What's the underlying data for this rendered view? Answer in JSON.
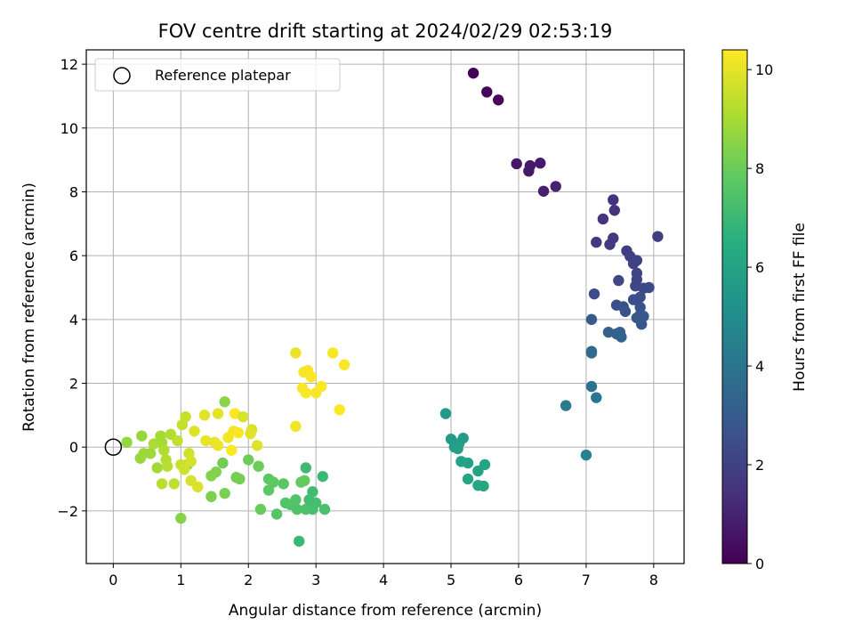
{
  "chart_data": {
    "type": "scatter",
    "title": "FOV centre drift starting at 2024/02/29 02:53:19",
    "xlabel": "Angular distance from reference (arcmin)",
    "ylabel": "Rotation from reference (arcmin)",
    "xlim": [
      -0.4,
      8.45
    ],
    "ylim": [
      -3.65,
      12.45
    ],
    "xticks": [
      0,
      1,
      2,
      3,
      4,
      5,
      6,
      7,
      8
    ],
    "yticks": [
      -2,
      0,
      2,
      4,
      6,
      8,
      10,
      12
    ],
    "grid": true,
    "legend": {
      "position": "top-left",
      "entries": [
        {
          "label": "Reference platepar",
          "marker": "open-circle"
        }
      ]
    },
    "reference_point": {
      "x": 0,
      "y": 0
    },
    "colorbar": {
      "label": "Hours from first FF file",
      "colormap": "viridis",
      "range": [
        0,
        10.4
      ],
      "ticks": [
        0,
        2,
        4,
        6,
        8,
        10
      ]
    },
    "points": [
      {
        "x": 5.33,
        "y": 11.72,
        "t": 0.05
      },
      {
        "x": 5.53,
        "y": 11.13,
        "t": 0.15
      },
      {
        "x": 5.7,
        "y": 10.88,
        "t": 0.25
      },
      {
        "x": 5.97,
        "y": 8.88,
        "t": 0.6
      },
      {
        "x": 6.15,
        "y": 8.65,
        "t": 0.7
      },
      {
        "x": 6.17,
        "y": 8.82,
        "t": 0.75
      },
      {
        "x": 6.32,
        "y": 8.9,
        "t": 0.8
      },
      {
        "x": 6.37,
        "y": 8.02,
        "t": 0.9
      },
      {
        "x": 6.55,
        "y": 8.17,
        "t": 1.0
      },
      {
        "x": 7.4,
        "y": 7.75,
        "t": 1.5
      },
      {
        "x": 7.42,
        "y": 7.42,
        "t": 1.55
      },
      {
        "x": 7.25,
        "y": 7.15,
        "t": 1.6
      },
      {
        "x": 7.15,
        "y": 6.42,
        "t": 1.7
      },
      {
        "x": 7.35,
        "y": 6.35,
        "t": 1.75
      },
      {
        "x": 7.4,
        "y": 6.55,
        "t": 1.8
      },
      {
        "x": 8.06,
        "y": 6.6,
        "t": 1.85
      },
      {
        "x": 7.6,
        "y": 6.15,
        "t": 1.9
      },
      {
        "x": 7.65,
        "y": 5.98,
        "t": 1.95
      },
      {
        "x": 7.7,
        "y": 5.75,
        "t": 2.0
      },
      {
        "x": 7.75,
        "y": 5.85,
        "t": 2.05
      },
      {
        "x": 7.75,
        "y": 5.45,
        "t": 2.1
      },
      {
        "x": 7.75,
        "y": 5.25,
        "t": 2.15
      },
      {
        "x": 7.48,
        "y": 5.22,
        "t": 2.2
      },
      {
        "x": 7.73,
        "y": 5.05,
        "t": 2.25
      },
      {
        "x": 7.85,
        "y": 4.98,
        "t": 2.3
      },
      {
        "x": 7.93,
        "y": 5.0,
        "t": 2.35
      },
      {
        "x": 7.12,
        "y": 4.8,
        "t": 2.4
      },
      {
        "x": 7.8,
        "y": 4.7,
        "t": 2.45
      },
      {
        "x": 7.7,
        "y": 4.62,
        "t": 2.5
      },
      {
        "x": 7.45,
        "y": 4.45,
        "t": 2.55
      },
      {
        "x": 7.55,
        "y": 4.4,
        "t": 2.6
      },
      {
        "x": 7.8,
        "y": 4.38,
        "t": 2.65
      },
      {
        "x": 7.58,
        "y": 4.25,
        "t": 2.7
      },
      {
        "x": 7.8,
        "y": 4.15,
        "t": 2.75
      },
      {
        "x": 7.75,
        "y": 4.05,
        "t": 2.8
      },
      {
        "x": 7.85,
        "y": 4.1,
        "t": 2.85
      },
      {
        "x": 7.82,
        "y": 3.85,
        "t": 2.9
      },
      {
        "x": 7.08,
        "y": 4.0,
        "t": 3.0
      },
      {
        "x": 7.33,
        "y": 3.6,
        "t": 3.2
      },
      {
        "x": 7.5,
        "y": 3.6,
        "t": 3.25
      },
      {
        "x": 7.45,
        "y": 3.55,
        "t": 3.3
      },
      {
        "x": 7.52,
        "y": 3.45,
        "t": 3.35
      },
      {
        "x": 7.08,
        "y": 3.0,
        "t": 3.6
      },
      {
        "x": 7.08,
        "y": 2.95,
        "t": 3.65
      },
      {
        "x": 7.08,
        "y": 1.9,
        "t": 4.0
      },
      {
        "x": 7.15,
        "y": 1.55,
        "t": 4.1
      },
      {
        "x": 6.7,
        "y": 1.3,
        "t": 4.3
      },
      {
        "x": 7.0,
        "y": -0.25,
        "t": 4.6
      },
      {
        "x": 4.92,
        "y": 1.05,
        "t": 5.6
      },
      {
        "x": 5.0,
        "y": 0.25,
        "t": 5.7
      },
      {
        "x": 5.18,
        "y": 0.28,
        "t": 5.75
      },
      {
        "x": 5.12,
        "y": 0.12,
        "t": 5.8
      },
      {
        "x": 5.05,
        "y": 0.0,
        "t": 5.85
      },
      {
        "x": 5.1,
        "y": -0.05,
        "t": 5.9
      },
      {
        "x": 5.15,
        "y": -0.45,
        "t": 5.95
      },
      {
        "x": 5.25,
        "y": -0.5,
        "t": 6.0
      },
      {
        "x": 5.5,
        "y": -0.55,
        "t": 6.05
      },
      {
        "x": 5.4,
        "y": -0.75,
        "t": 6.1
      },
      {
        "x": 5.25,
        "y": -1.0,
        "t": 6.15
      },
      {
        "x": 5.4,
        "y": -1.2,
        "t": 6.2
      },
      {
        "x": 5.48,
        "y": -1.22,
        "t": 6.25
      },
      {
        "x": 2.75,
        "y": -2.95,
        "t": 7.0
      },
      {
        "x": 3.1,
        "y": -0.92,
        "t": 7.05
      },
      {
        "x": 2.85,
        "y": -0.65,
        "t": 7.1
      },
      {
        "x": 2.95,
        "y": -1.4,
        "t": 7.15
      },
      {
        "x": 2.9,
        "y": -1.65,
        "t": 7.2
      },
      {
        "x": 3.0,
        "y": -1.75,
        "t": 7.25
      },
      {
        "x": 2.95,
        "y": -1.95,
        "t": 7.3
      },
      {
        "x": 3.13,
        "y": -1.95,
        "t": 7.35
      },
      {
        "x": 2.85,
        "y": -1.95,
        "t": 7.4
      },
      {
        "x": 2.72,
        "y": -1.95,
        "t": 7.45
      },
      {
        "x": 2.62,
        "y": -1.8,
        "t": 7.5
      },
      {
        "x": 2.7,
        "y": -1.65,
        "t": 7.55
      },
      {
        "x": 2.55,
        "y": -1.75,
        "t": 7.6
      },
      {
        "x": 2.42,
        "y": -2.1,
        "t": 7.65
      },
      {
        "x": 2.52,
        "y": -1.15,
        "t": 7.7
      },
      {
        "x": 2.3,
        "y": -1.0,
        "t": 7.75
      },
      {
        "x": 2.3,
        "y": -1.35,
        "t": 7.8
      },
      {
        "x": 2.37,
        "y": -1.1,
        "t": 7.85
      },
      {
        "x": 2.78,
        "y": -1.1,
        "t": 7.9
      },
      {
        "x": 2.83,
        "y": -1.05,
        "t": 7.95
      },
      {
        "x": 2.18,
        "y": -1.95,
        "t": 8.0
      },
      {
        "x": 2.15,
        "y": -0.6,
        "t": 8.05
      },
      {
        "x": 2.0,
        "y": -0.4,
        "t": 8.1
      },
      {
        "x": 1.62,
        "y": -0.5,
        "t": 8.15
      },
      {
        "x": 1.82,
        "y": -0.95,
        "t": 8.2
      },
      {
        "x": 1.87,
        "y": -1.0,
        "t": 8.25
      },
      {
        "x": 1.65,
        "y": -1.45,
        "t": 8.3
      },
      {
        "x": 1.45,
        "y": -1.55,
        "t": 8.35
      },
      {
        "x": 1.52,
        "y": -0.78,
        "t": 8.4
      },
      {
        "x": 1.45,
        "y": -0.9,
        "t": 8.45
      },
      {
        "x": 1.0,
        "y": -2.23,
        "t": 8.5
      },
      {
        "x": 1.65,
        "y": 1.42,
        "t": 8.55
      },
      {
        "x": 1.1,
        "y": -0.55,
        "t": 8.6
      },
      {
        "x": 0.2,
        "y": 0.15,
        "t": 8.7
      },
      {
        "x": 0.42,
        "y": 0.35,
        "t": 8.75
      },
      {
        "x": 0.4,
        "y": -0.35,
        "t": 8.8
      },
      {
        "x": 0.45,
        "y": -0.2,
        "t": 8.85
      },
      {
        "x": 0.55,
        "y": -0.2,
        "t": 8.9
      },
      {
        "x": 0.65,
        "y": -0.65,
        "t": 8.95
      },
      {
        "x": 0.7,
        "y": 0.35,
        "t": 9.0
      },
      {
        "x": 0.72,
        "y": 0.15,
        "t": 9.05
      },
      {
        "x": 0.6,
        "y": 0.1,
        "t": 9.1
      },
      {
        "x": 0.75,
        "y": -0.1,
        "t": 9.15
      },
      {
        "x": 0.85,
        "y": 0.4,
        "t": 9.2
      },
      {
        "x": 0.78,
        "y": -0.4,
        "t": 9.25
      },
      {
        "x": 0.8,
        "y": -0.6,
        "t": 9.3
      },
      {
        "x": 0.72,
        "y": -1.15,
        "t": 9.35
      },
      {
        "x": 0.9,
        "y": -1.15,
        "t": 9.4
      },
      {
        "x": 0.95,
        "y": 0.2,
        "t": 9.45
      },
      {
        "x": 1.02,
        "y": 0.7,
        "t": 9.5
      },
      {
        "x": 1.07,
        "y": 0.95,
        "t": 9.55
      },
      {
        "x": 1.0,
        "y": -0.55,
        "t": 9.6
      },
      {
        "x": 1.05,
        "y": -0.7,
        "t": 9.65
      },
      {
        "x": 1.12,
        "y": -0.2,
        "t": 9.7
      },
      {
        "x": 1.15,
        "y": -0.45,
        "t": 9.75
      },
      {
        "x": 1.15,
        "y": -1.05,
        "t": 9.8
      },
      {
        "x": 1.25,
        "y": -1.25,
        "t": 9.85
      },
      {
        "x": 1.2,
        "y": 0.5,
        "t": 9.9
      },
      {
        "x": 1.35,
        "y": 1.0,
        "t": 9.95
      },
      {
        "x": 1.55,
        "y": 1.05,
        "t": 10.0
      },
      {
        "x": 1.37,
        "y": 0.2,
        "t": 10.05
      },
      {
        "x": 1.5,
        "y": 0.15,
        "t": 10.1
      },
      {
        "x": 1.55,
        "y": 0.05,
        "t": 10.15
      },
      {
        "x": 1.7,
        "y": 0.3,
        "t": 10.2
      },
      {
        "x": 1.78,
        "y": 0.5,
        "t": 10.25
      },
      {
        "x": 1.85,
        "y": 0.45,
        "t": 10.3
      },
      {
        "x": 1.75,
        "y": -0.1,
        "t": 10.35
      },
      {
        "x": 1.8,
        "y": 1.05,
        "t": 10.4
      },
      {
        "x": 1.92,
        "y": 0.95,
        "t": 9.8
      },
      {
        "x": 2.05,
        "y": 0.55,
        "t": 9.85
      },
      {
        "x": 2.13,
        "y": 0.05,
        "t": 9.9
      },
      {
        "x": 2.03,
        "y": 0.42,
        "t": 9.95
      },
      {
        "x": 2.7,
        "y": 2.95,
        "t": 10.1
      },
      {
        "x": 2.7,
        "y": 0.65,
        "t": 10.2
      },
      {
        "x": 2.82,
        "y": 2.35,
        "t": 10.25
      },
      {
        "x": 2.88,
        "y": 2.4,
        "t": 10.3
      },
      {
        "x": 2.93,
        "y": 2.2,
        "t": 10.35
      },
      {
        "x": 2.8,
        "y": 1.85,
        "t": 10.3
      },
      {
        "x": 2.85,
        "y": 1.7,
        "t": 10.35
      },
      {
        "x": 3.0,
        "y": 1.7,
        "t": 10.3
      },
      {
        "x": 3.08,
        "y": 1.9,
        "t": 10.35
      },
      {
        "x": 3.25,
        "y": 2.95,
        "t": 10.3
      },
      {
        "x": 3.42,
        "y": 2.58,
        "t": 10.35
      },
      {
        "x": 3.35,
        "y": 1.17,
        "t": 10.4
      }
    ]
  }
}
